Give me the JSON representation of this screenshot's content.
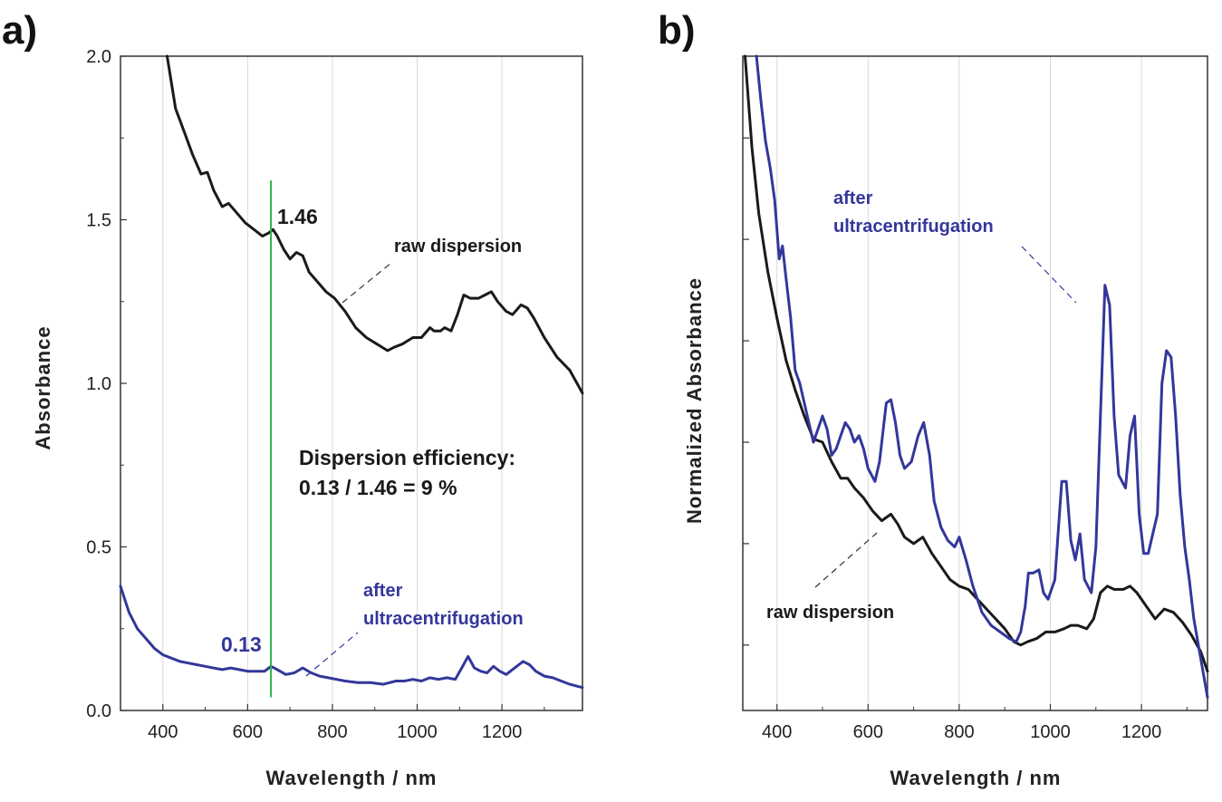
{
  "colors": {
    "raw": "#1a1a1a",
    "uc": "#33379a",
    "marker": "#2bb34a",
    "grid": "#d9d9d9",
    "axis": "#333333"
  },
  "chart_data": [
    {
      "type": "line",
      "panel_label": "a)",
      "xlabel": "Wavelength / nm",
      "ylabel": "Absorbance",
      "xlim": [
        300,
        1390
      ],
      "ylim": [
        0,
        2.0
      ],
      "x_ticks": [
        400,
        600,
        800,
        1000,
        1200
      ],
      "y_ticks": [
        "0.0",
        "0.5",
        "1.0",
        "1.5",
        "2.0"
      ],
      "grid": "vertical",
      "marker_line": {
        "x": 655,
        "y_range": [
          0.04,
          1.62
        ]
      },
      "series": [
        {
          "name": "raw dispersion",
          "color": "#1a1a1a",
          "x": [
            410,
            430,
            450,
            470,
            490,
            505,
            520,
            540,
            555,
            575,
            595,
            615,
            635,
            650,
            660,
            670,
            685,
            700,
            715,
            730,
            745,
            765,
            785,
            805,
            830,
            855,
            880,
            905,
            930,
            945,
            965,
            990,
            1010,
            1030,
            1040,
            1055,
            1065,
            1080,
            1095,
            1110,
            1125,
            1145,
            1160,
            1175,
            1190,
            1210,
            1225,
            1245,
            1260,
            1275,
            1300,
            1330,
            1360,
            1390
          ],
          "y": [
            2.0,
            1.84,
            1.77,
            1.7,
            1.64,
            1.645,
            1.59,
            1.54,
            1.55,
            1.52,
            1.49,
            1.47,
            1.45,
            1.46,
            1.47,
            1.45,
            1.41,
            1.38,
            1.4,
            1.39,
            1.34,
            1.31,
            1.28,
            1.26,
            1.22,
            1.17,
            1.14,
            1.12,
            1.1,
            1.11,
            1.12,
            1.14,
            1.14,
            1.17,
            1.16,
            1.16,
            1.17,
            1.16,
            1.21,
            1.27,
            1.26,
            1.26,
            1.27,
            1.28,
            1.25,
            1.22,
            1.21,
            1.24,
            1.23,
            1.2,
            1.14,
            1.08,
            1.04,
            0.97
          ]
        },
        {
          "name": "after ultracentrifugation",
          "color": "#33379a",
          "x": [
            300,
            320,
            340,
            360,
            380,
            400,
            420,
            440,
            460,
            480,
            500,
            520,
            540,
            560,
            580,
            600,
            620,
            640,
            655,
            670,
            690,
            710,
            730,
            750,
            770,
            790,
            810,
            830,
            860,
            890,
            920,
            950,
            970,
            990,
            1010,
            1030,
            1050,
            1070,
            1090,
            1105,
            1120,
            1135,
            1150,
            1165,
            1180,
            1195,
            1210,
            1230,
            1250,
            1265,
            1280,
            1300,
            1320,
            1340,
            1360,
            1390
          ],
          "y": [
            0.38,
            0.3,
            0.25,
            0.22,
            0.19,
            0.17,
            0.16,
            0.15,
            0.145,
            0.14,
            0.135,
            0.13,
            0.125,
            0.13,
            0.125,
            0.12,
            0.12,
            0.12,
            0.135,
            0.125,
            0.11,
            0.115,
            0.13,
            0.115,
            0.105,
            0.1,
            0.095,
            0.09,
            0.085,
            0.085,
            0.08,
            0.09,
            0.09,
            0.095,
            0.09,
            0.1,
            0.095,
            0.1,
            0.095,
            0.13,
            0.165,
            0.13,
            0.12,
            0.115,
            0.135,
            0.12,
            0.11,
            0.13,
            0.15,
            0.14,
            0.12,
            0.105,
            0.1,
            0.09,
            0.08,
            0.07
          ]
        }
      ],
      "annotations": {
        "raw_value": "1.46",
        "raw_label": "raw dispersion",
        "uc_value": "0.13",
        "uc_label_line1": "after",
        "uc_label_line2": "ultracentrifugation",
        "efficiency_line1": "Dispersion efficiency:",
        "efficiency_line2": "0.13 / 1.46 = 9 %"
      }
    },
    {
      "type": "line",
      "panel_label": "b)",
      "xlabel": "Wavelength / nm",
      "ylabel": "Normalized Absorbance",
      "xlim": [
        325,
        1345
      ],
      "ylim": [
        0,
        1
      ],
      "x_ticks": [
        400,
        600,
        800,
        1000,
        1200
      ],
      "y_ticks_unlabeled": [
        0.1,
        0.255,
        0.41,
        0.565,
        0.72,
        0.875
      ],
      "grid": "vertical",
      "series": [
        {
          "name": "raw dispersion",
          "color": "#1a1a1a",
          "x": [
            330,
            345,
            360,
            380,
            400,
            420,
            440,
            460,
            480,
            500,
            520,
            540,
            555,
            570,
            590,
            610,
            630,
            650,
            665,
            680,
            700,
            720,
            740,
            760,
            780,
            800,
            820,
            840,
            860,
            880,
            900,
            920,
            935,
            950,
            970,
            990,
            1010,
            1030,
            1045,
            1060,
            1080,
            1095,
            1110,
            1125,
            1140,
            1160,
            1175,
            1190,
            1210,
            1230,
            1250,
            1270,
            1290,
            1310,
            1330,
            1345
          ],
          "y": [
            1.0,
            0.86,
            0.76,
            0.67,
            0.6,
            0.535,
            0.49,
            0.45,
            0.415,
            0.41,
            0.38,
            0.355,
            0.355,
            0.34,
            0.325,
            0.305,
            0.29,
            0.3,
            0.285,
            0.265,
            0.255,
            0.265,
            0.24,
            0.22,
            0.2,
            0.19,
            0.185,
            0.17,
            0.155,
            0.14,
            0.125,
            0.105,
            0.1,
            0.105,
            0.11,
            0.12,
            0.12,
            0.125,
            0.13,
            0.13,
            0.125,
            0.14,
            0.18,
            0.19,
            0.185,
            0.185,
            0.19,
            0.18,
            0.16,
            0.14,
            0.155,
            0.15,
            0.135,
            0.115,
            0.09,
            0.06
          ]
        },
        {
          "name": "after ultracentrifugation",
          "color": "#33379a",
          "x": [
            355,
            365,
            375,
            385,
            395,
            405,
            412,
            420,
            430,
            440,
            450,
            460,
            470,
            480,
            490,
            500,
            510,
            520,
            530,
            540,
            550,
            560,
            570,
            580,
            590,
            600,
            615,
            625,
            640,
            650,
            660,
            670,
            680,
            695,
            710,
            722,
            735,
            745,
            760,
            775,
            790,
            800,
            815,
            830,
            850,
            870,
            890,
            910,
            925,
            935,
            945,
            952,
            962,
            975,
            985,
            995,
            1010,
            1025,
            1035,
            1045,
            1055,
            1065,
            1075,
            1090,
            1100,
            1110,
            1120,
            1130,
            1140,
            1150,
            1165,
            1175,
            1185,
            1195,
            1205,
            1215,
            1225,
            1235,
            1245,
            1255,
            1265,
            1275,
            1285,
            1295,
            1305,
            1315,
            1325,
            1335,
            1345
          ],
          "y": [
            1.0,
            0.93,
            0.87,
            0.83,
            0.78,
            0.69,
            0.71,
            0.66,
            0.6,
            0.52,
            0.5,
            0.47,
            0.44,
            0.41,
            0.43,
            0.45,
            0.43,
            0.39,
            0.4,
            0.42,
            0.44,
            0.43,
            0.41,
            0.42,
            0.4,
            0.37,
            0.35,
            0.38,
            0.47,
            0.475,
            0.44,
            0.39,
            0.37,
            0.38,
            0.42,
            0.44,
            0.39,
            0.32,
            0.28,
            0.26,
            0.25,
            0.265,
            0.23,
            0.19,
            0.15,
            0.13,
            0.12,
            0.11,
            0.105,
            0.12,
            0.16,
            0.21,
            0.21,
            0.215,
            0.18,
            0.17,
            0.2,
            0.35,
            0.35,
            0.26,
            0.23,
            0.27,
            0.2,
            0.18,
            0.25,
            0.45,
            0.65,
            0.62,
            0.45,
            0.36,
            0.34,
            0.42,
            0.45,
            0.3,
            0.24,
            0.24,
            0.27,
            0.3,
            0.5,
            0.55,
            0.54,
            0.45,
            0.33,
            0.25,
            0.2,
            0.14,
            0.1,
            0.06,
            0.02
          ]
        }
      ],
      "annotations": {
        "uc_label_line1": "after",
        "uc_label_line2": "ultracentrifugation",
        "raw_label": "raw dispersion"
      }
    }
  ]
}
